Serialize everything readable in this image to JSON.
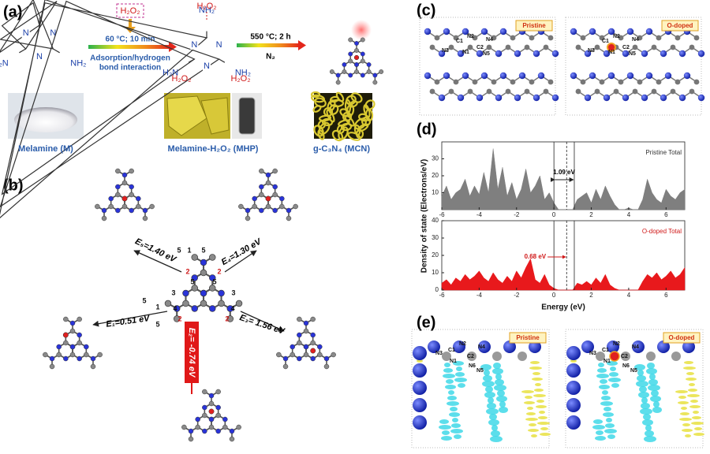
{
  "panel_a": {
    "label": "(a)",
    "reagent": "H₂O₂",
    "step1_condition": "60 °C; 10 min",
    "step1_note": [
      "Adsorption/hydrogen",
      "bond interaction"
    ],
    "step2_condition": "550 °C; 2 h",
    "step2_gas": "N₂",
    "melamine_atoms": [
      "NH₂",
      "N",
      "NH₂",
      "N",
      "H₂N",
      "N"
    ],
    "h2o2_labels": [
      "H₂O₂",
      "H₂O₂",
      "H₂O₂"
    ],
    "captions": [
      "Melamine (M)",
      "Melamine-H₂O₂ (MHP)",
      "g-C₃N₄ (MCN)"
    ]
  },
  "panel_b": {
    "label": "(b)",
    "energies": [
      "E₅=1.40 eV",
      "E₄=1.30 eV",
      "E₁=0.51 eV",
      "E₃= 1.56 eV",
      "E₂= -0.74 eV"
    ],
    "site_numbers": [
      "5",
      "1",
      "5",
      "2",
      "2",
      "3",
      "3",
      "5",
      "5",
      "4",
      "4",
      "5",
      "1",
      "5",
      "2",
      "2"
    ]
  },
  "panel_c": {
    "label": "(c)",
    "states": [
      "Pristine",
      "O-doped"
    ],
    "atoms": [
      "C1",
      "N2",
      "N4",
      "N3",
      "N1",
      "C2",
      "N5"
    ]
  },
  "panel_d": {
    "label": "(d)",
    "chart": {
      "type": "area",
      "y_label": "Density of state (Electrons/eV)",
      "x_label": "Energy (eV)",
      "x": [
        -6,
        -5.75,
        -5.5,
        -5.25,
        -5,
        -4.75,
        -4.5,
        -4.25,
        -4,
        -3.75,
        -3.5,
        -3.25,
        -3,
        -2.75,
        -2.5,
        -2.25,
        -2,
        -1.75,
        -1.5,
        -1.25,
        -1,
        -0.75,
        -0.5,
        -0.25,
        0,
        0.25,
        0.5,
        0.75,
        1,
        1.25,
        1.5,
        1.75,
        2,
        2.25,
        2.5,
        2.75,
        3,
        3.25,
        3.5,
        3.75,
        4,
        4.25,
        4.5,
        4.75,
        5,
        5.25,
        5.5,
        5.75,
        6,
        6.25,
        6.5,
        6.75,
        7
      ],
      "xlim": [
        -6,
        7
      ],
      "xticks": [
        -6,
        -4,
        -2,
        0,
        2,
        4,
        6
      ],
      "vlines": [
        0,
        0.68,
        1.09
      ],
      "gap_labels": [
        "1.09 eV",
        "0.68 eV"
      ],
      "series": [
        {
          "name": "Pristine Total",
          "color": "#7f7f7f",
          "ylim": [
            0,
            40
          ],
          "yticks": [
            10,
            20,
            30
          ],
          "values": [
            8,
            14,
            6,
            10,
            12,
            18,
            8,
            14,
            9,
            22,
            10,
            36,
            12,
            25,
            8,
            16,
            6,
            12,
            24,
            10,
            14,
            20,
            6,
            10,
            4,
            0,
            0,
            0,
            0,
            6,
            8,
            10,
            4,
            12,
            6,
            14,
            8,
            3,
            0,
            0,
            1,
            0,
            0,
            6,
            18,
            10,
            6,
            4,
            12,
            8,
            6,
            10,
            12
          ]
        },
        {
          "name": "O-doped Total",
          "color": "#e8191c",
          "ylim": [
            0,
            40
          ],
          "yticks": [
            0,
            10,
            20,
            30,
            40
          ],
          "values": [
            4,
            6,
            3,
            7,
            5,
            9,
            6,
            8,
            11,
            7,
            5,
            10,
            6,
            4,
            8,
            5,
            11,
            7,
            13,
            18,
            6,
            4,
            9,
            3,
            1,
            0,
            0,
            0,
            0,
            4,
            3,
            5,
            3,
            7,
            4,
            9,
            3,
            1,
            0,
            0,
            0,
            0,
            0,
            5,
            9,
            7,
            10,
            6,
            8,
            11,
            7,
            9,
            13
          ]
        }
      ]
    }
  },
  "panel_e": {
    "label": "(e)",
    "states": [
      "Pristine",
      "O-doped"
    ],
    "atoms": [
      "N3",
      "C1",
      "N2",
      "N4",
      "N1",
      "C2",
      "N6",
      "N5"
    ]
  }
}
